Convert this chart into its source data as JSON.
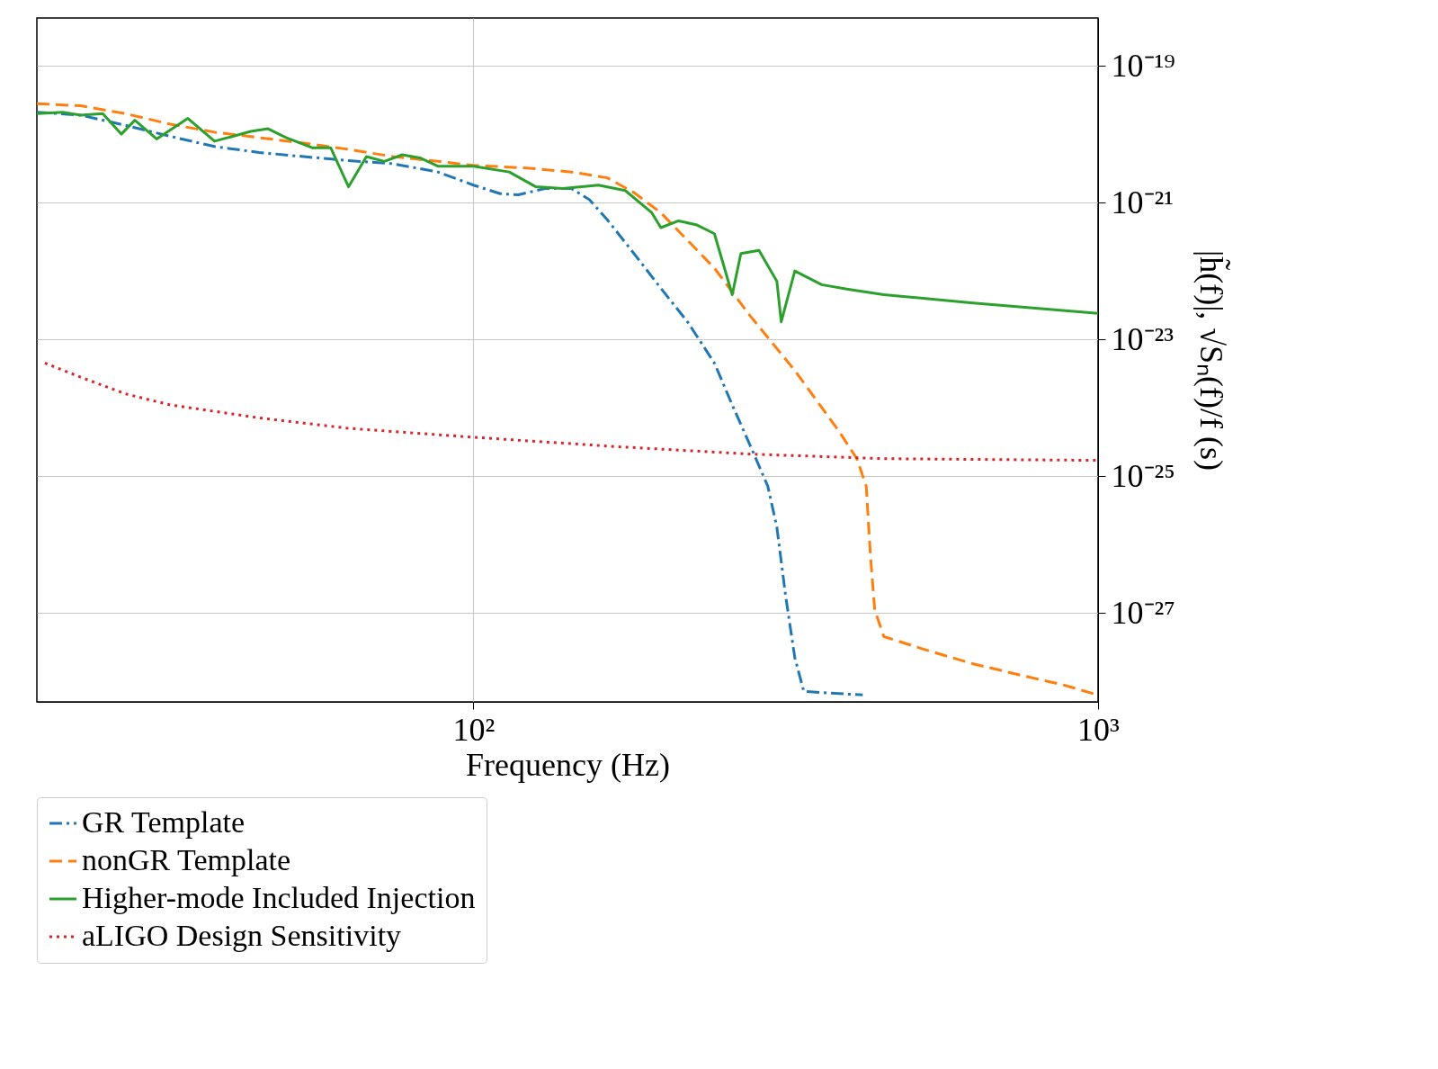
{
  "chart_data": {
    "type": "line",
    "xlabel": "Frequency (Hz)",
    "ylabel": "|h̃(f)|, √Sₙ(f)/f (s)",
    "log": "xy",
    "grid": true,
    "legend": "bottom left",
    "xlim": [
      20,
      1000
    ],
    "xticks": [
      {
        "value": 100,
        "label": "10²"
      },
      {
        "value": 1000,
        "label": "10³"
      }
    ],
    "ylim": [
      5e-29,
      5e-19
    ],
    "yticks": [
      {
        "value": 1e-19,
        "label": "10⁻¹⁹"
      },
      {
        "value": 1e-21,
        "label": "10⁻²¹"
      },
      {
        "value": 1e-23,
        "label": "10⁻²³"
      },
      {
        "value": 1e-25,
        "label": "10⁻²⁵"
      },
      {
        "value": 1e-27,
        "label": "10⁻²⁷"
      }
    ],
    "series": [
      {
        "name": "GR Template",
        "color": "#1f77b4",
        "line_style": "dashdot",
        "x": [
          20,
          23.5,
          27.7,
          32.7,
          38.5,
          45.4,
          53.5,
          63.1,
          74.3,
          87.7,
          100,
          110.4,
          117.9,
          130.1,
          143.6,
          153.4,
          163.8,
          180.7,
          199.5,
          220.2,
          243.1,
          259.6,
          277.4,
          296,
          306,
          316,
          327,
          338,
          420
        ],
        "values": [
          2.1e-20,
          1.9e-20,
          1.35e-20,
          9.3e-21,
          6.6e-21,
          5.4e-21,
          4.7e-21,
          4.1e-21,
          3.7e-21,
          2.8e-21,
          1.8e-21,
          1.35e-21,
          1.3e-21,
          1.6e-21,
          1.6e-21,
          1.1e-21,
          5.6e-22,
          1.8e-22,
          5.6e-23,
          1.8e-23,
          4.5e-24,
          1.1e-24,
          2.8e-25,
          7.1e-26,
          1.8e-26,
          1.8e-27,
          2.2e-28,
          7.1e-29,
          6.3e-29
        ]
      },
      {
        "name": "nonGR Template",
        "color": "#ff7f0e",
        "line_style": "dashed",
        "x": [
          20,
          23.5,
          27.7,
          32.7,
          38.5,
          45.4,
          53.5,
          63.1,
          74.3,
          87.7,
          100,
          121.8,
          143.6,
          163.8,
          180.7,
          199.5,
          220.2,
          243.1,
          277.4,
          327,
          385,
          411,
          425.5,
          432,
          439,
          454,
          535,
          631,
          743,
          877,
          1000
        ],
        "values": [
          2.8e-20,
          2.6e-20,
          2e-20,
          1.4e-20,
          1.07e-20,
          8.9e-21,
          7.4e-21,
          6e-21,
          4.7e-21,
          4e-21,
          3.5e-21,
          3.2e-21,
          2.8e-21,
          2.3e-21,
          1.4e-21,
          7.1e-22,
          2.8e-22,
          1.1e-22,
          2.2e-23,
          3.5e-24,
          4.5e-25,
          1.8e-25,
          7.1e-26,
          7.1e-27,
          1.1e-27,
          4.5e-28,
          2.8e-28,
          1.8e-28,
          1.26e-28,
          8.9e-29,
          6.3e-29
        ]
      },
      {
        "name": "Higher-mode Included Injection",
        "color": "#2ca02c",
        "line_style": "solid",
        "x": [
          20,
          22.0,
          23.5,
          25.5,
          27.3,
          28.7,
          31.1,
          34.9,
          38.5,
          41.2,
          44.0,
          46.9,
          50.1,
          55.3,
          59.1,
          63.1,
          67.4,
          72.0,
          76.9,
          82.1,
          87.7,
          100,
          114.1,
          125.9,
          139,
          158.5,
          175,
          193,
          199.5,
          213,
          228,
          243.1,
          259.6,
          268,
          286.5,
          306,
          311,
          327,
          361,
          398,
          454,
          631,
          1000
        ],
        "values": [
          2e-20,
          2.1e-20,
          1.9e-20,
          2e-20,
          1e-20,
          1.6e-20,
          8.5e-21,
          1.7e-20,
          7.9e-21,
          9.3e-21,
          1.1e-20,
          1.2e-20,
          8.9e-21,
          6.3e-21,
          6.3e-21,
          1.7e-21,
          4.7e-21,
          4e-21,
          5e-21,
          4.5e-21,
          3.4e-21,
          3.4e-21,
          2.8e-21,
          1.7e-21,
          1.6e-21,
          1.8e-21,
          1.5e-21,
          7.1e-22,
          4.3e-22,
          5.4e-22,
          4.7e-22,
          3.5e-22,
          4.5e-23,
          1.8e-22,
          2e-22,
          7.1e-23,
          1.8e-23,
          1e-22,
          6.3e-23,
          5.4e-23,
          4.5e-23,
          3.4e-23,
          2.4e-23
        ]
      },
      {
        "name": "aLIGO Design Sensitivity",
        "color": "#d62728",
        "line_style": "dotted",
        "x": [
          20.6,
          23.5,
          27.7,
          32.7,
          45.4,
          63.1,
          100,
          169.3,
          277.4,
          454,
          1000
        ],
        "values": [
          4.5e-24,
          2.8e-24,
          1.6e-24,
          1.1e-24,
          7.1e-25,
          5e-25,
          3.7e-25,
          2.7e-25,
          2.1e-25,
          1.8e-25,
          1.7e-25
        ]
      }
    ]
  }
}
